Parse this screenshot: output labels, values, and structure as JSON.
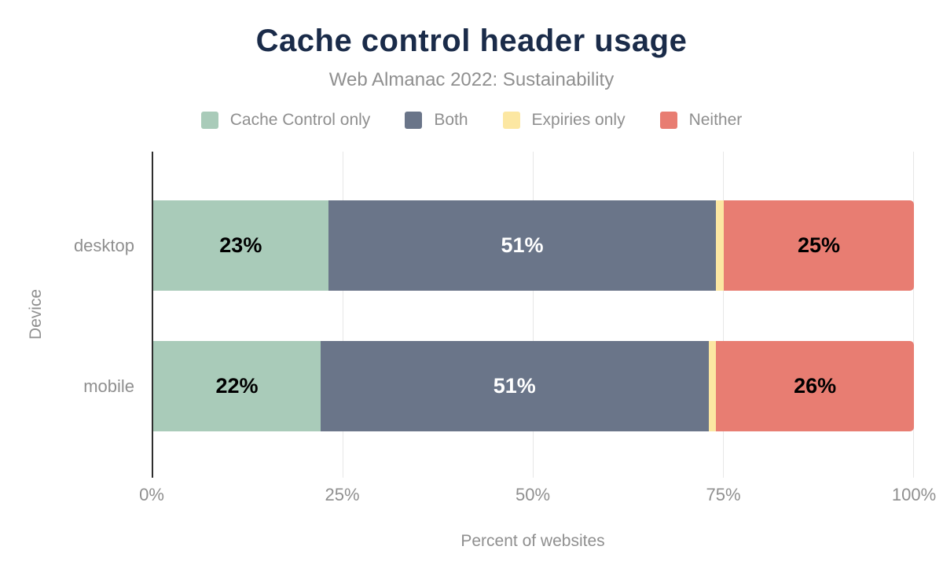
{
  "muted_text_color": "#8f8f8f",
  "title_color": "#1a2b49",
  "axis_line_color": "#2e2e2e",
  "gridline_color": "#e7e7e7",
  "chart_data": {
    "type": "bar",
    "orientation": "horizontal-stacked",
    "title": "Cache control header usage",
    "subtitle": "Web Almanac 2022: Sustainability",
    "xlabel": "Percent of websites",
    "ylabel": "Device",
    "xlim": [
      0,
      100
    ],
    "grid": true,
    "legend_position": "top",
    "categories": [
      "desktop",
      "mobile"
    ],
    "series": [
      {
        "name": "Cache Control only",
        "color": "#a9cbb9",
        "values": [
          23,
          22
        ],
        "labels": [
          "23%",
          "22%"
        ],
        "label_color": "#000000"
      },
      {
        "name": "Both",
        "color": "#6a7589",
        "values": [
          51,
          51
        ],
        "labels": [
          "51%",
          "51%"
        ],
        "label_color": "#ffffff"
      },
      {
        "name": "Expiries only",
        "color": "#fce7a2",
        "values": [
          1,
          1
        ],
        "labels": [
          "",
          ""
        ],
        "label_color": "#000000"
      },
      {
        "name": "Neither",
        "color": "#e87d72",
        "values": [
          25,
          26
        ],
        "labels": [
          "25%",
          "26%"
        ],
        "label_color": "#000000"
      }
    ],
    "x_tick_values": [
      0,
      25,
      50,
      75,
      100
    ],
    "x_tick_labels": [
      "0%",
      "25%",
      "50%",
      "75%",
      "100%"
    ]
  }
}
